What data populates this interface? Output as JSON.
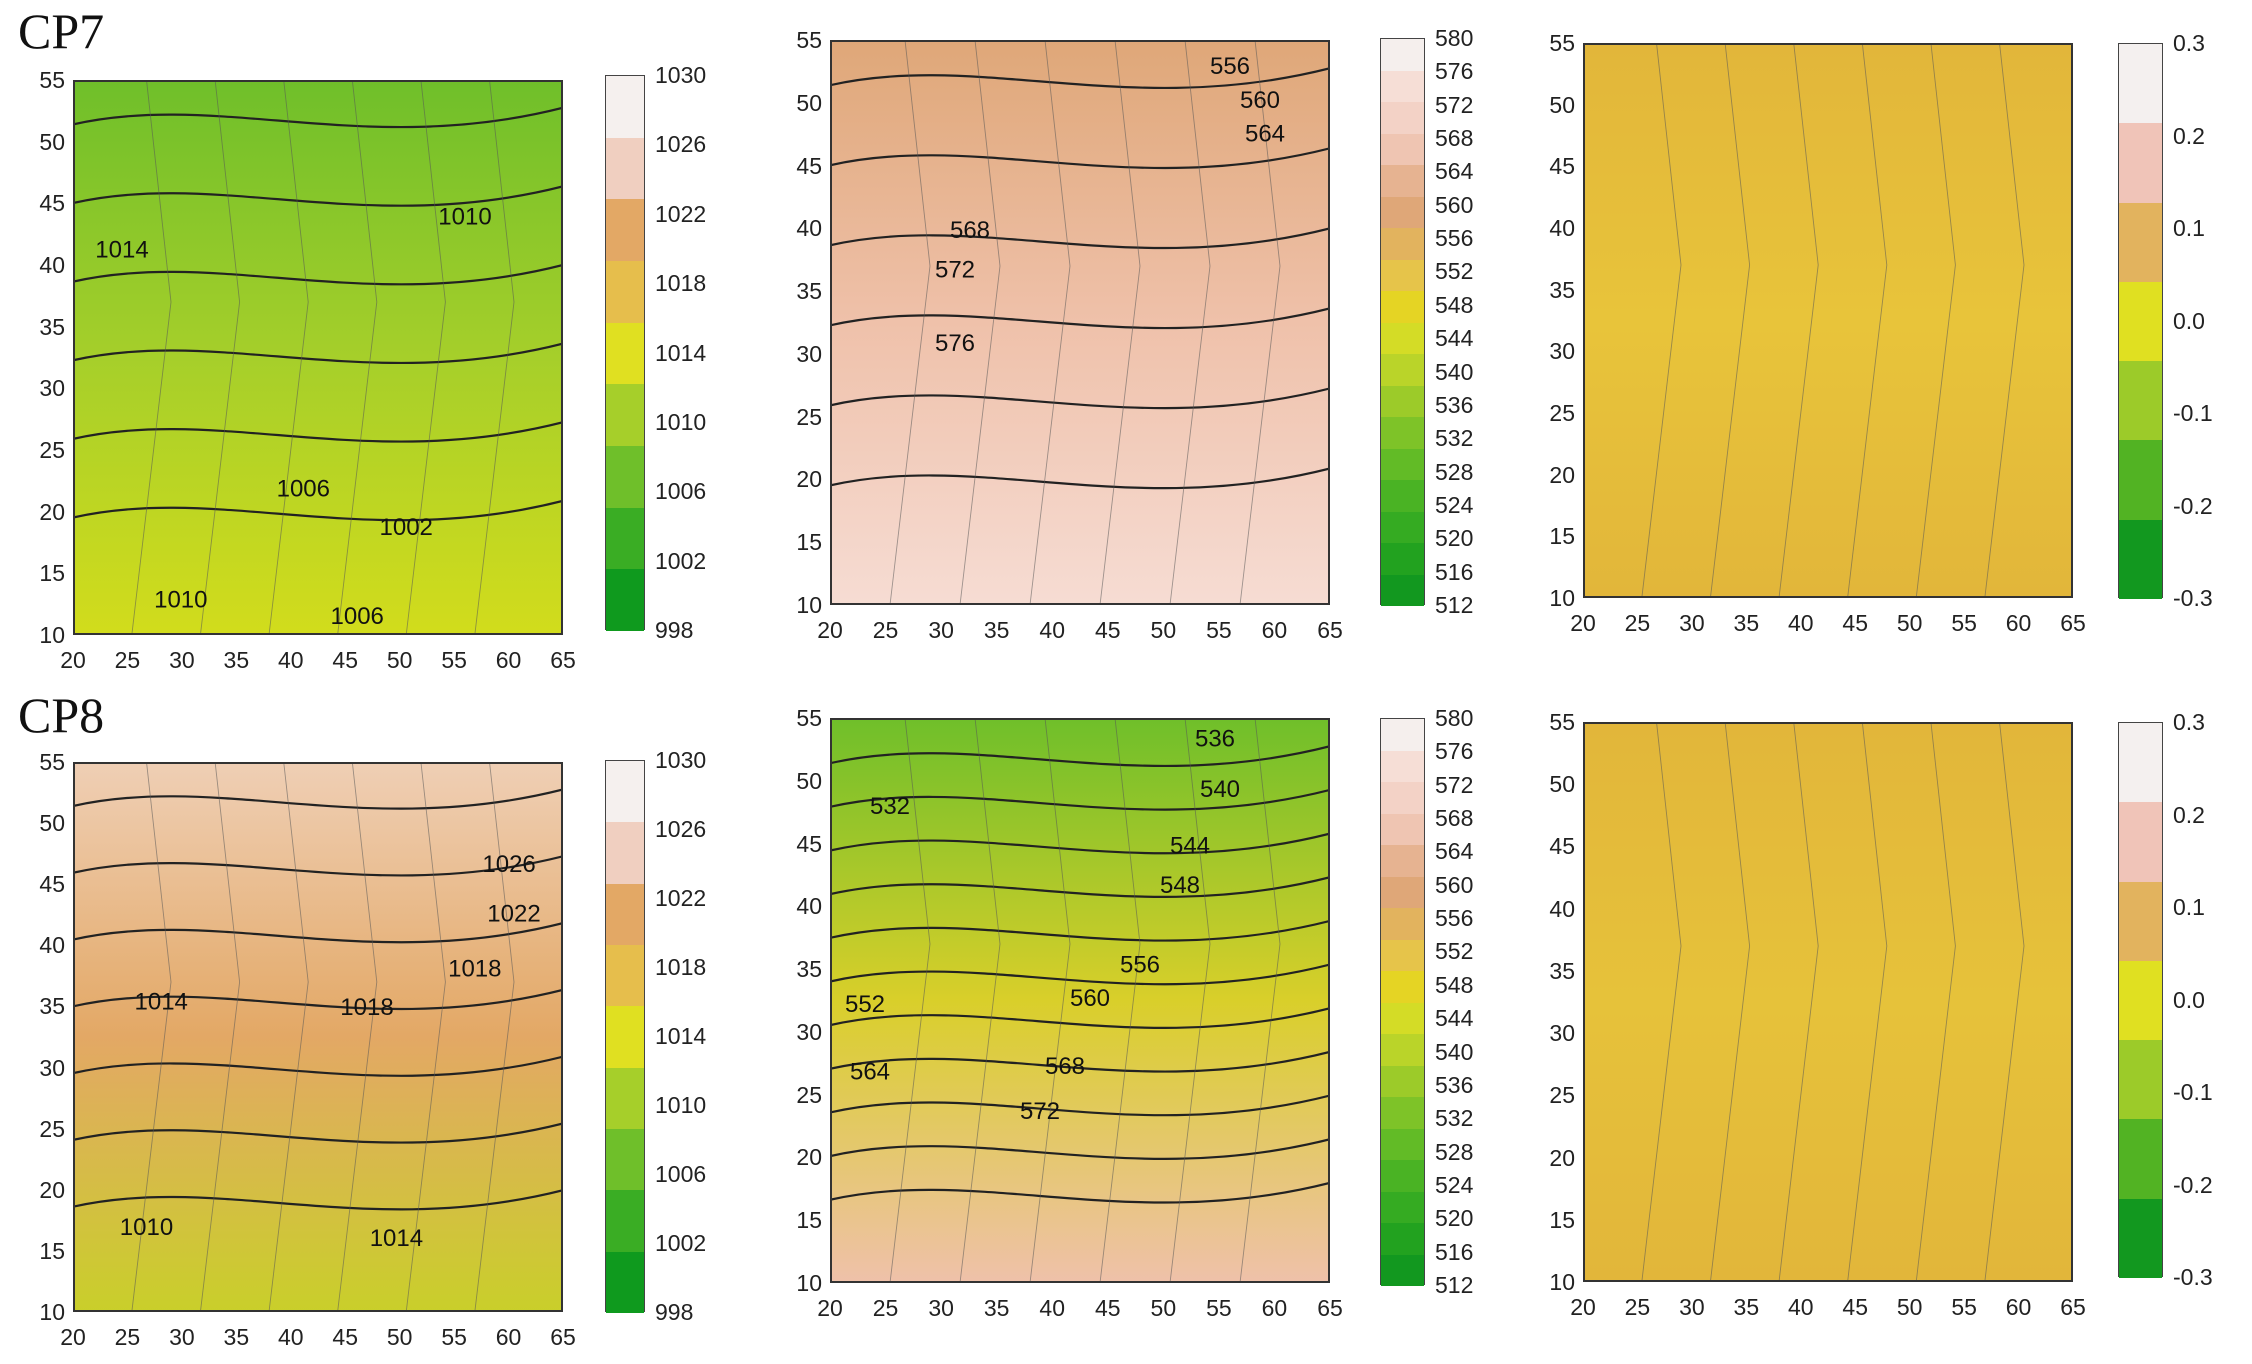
{
  "rows": [
    {
      "label": "CP7"
    },
    {
      "label": "CP8"
    }
  ],
  "chart_data": [
    {
      "type": "heatmap",
      "id": "cp7-slp",
      "xlim": [
        20,
        65
      ],
      "ylim": [
        10,
        55
      ],
      "xticks": [
        "20",
        "25",
        "30",
        "35",
        "40",
        "45",
        "50",
        "55",
        "60",
        "65"
      ],
      "yticks": [
        "10",
        "15",
        "20",
        "25",
        "30",
        "35",
        "40",
        "45",
        "50",
        "55"
      ],
      "colorbar": [
        "998",
        "1002",
        "1006",
        "1010",
        "1014",
        "1018",
        "1022",
        "1026",
        "1030"
      ],
      "contour_labels": [
        "1010",
        "1014",
        "1006",
        "1002",
        "1010",
        "1006"
      ],
      "gradient": [
        "#6fbf2a",
        "#a6cf2a",
        "#d2dc1c"
      ]
    },
    {
      "type": "heatmap",
      "id": "cp7-z500",
      "xlim": [
        20,
        65
      ],
      "ylim": [
        10,
        55
      ],
      "xticks": [
        "20",
        "25",
        "30",
        "35",
        "40",
        "45",
        "50",
        "55",
        "60",
        "65"
      ],
      "yticks": [
        "10",
        "15",
        "20",
        "25",
        "30",
        "35",
        "40",
        "45",
        "50",
        "55"
      ],
      "colorbar": [
        "512",
        "516",
        "520",
        "524",
        "528",
        "532",
        "536",
        "540",
        "544",
        "548",
        "552",
        "556",
        "560",
        "564",
        "568",
        "572",
        "576",
        "580"
      ],
      "contour_labels": [
        "556",
        "560",
        "564",
        "568",
        "572",
        "576"
      ],
      "gradient": [
        "#dfa778",
        "#efc1aa",
        "#f6dcd3"
      ]
    },
    {
      "type": "heatmap",
      "id": "cp7-anom",
      "xlim": [
        20,
        65
      ],
      "ylim": [
        10,
        55
      ],
      "xticks": [
        "20",
        "25",
        "30",
        "35",
        "40",
        "45",
        "50",
        "55",
        "60",
        "65"
      ],
      "yticks": [
        "10",
        "15",
        "20",
        "25",
        "30",
        "35",
        "40",
        "45",
        "50",
        "55"
      ],
      "colorbar": [
        "-0.3",
        "-0.2",
        "-0.1",
        "0.0",
        "0.1",
        "0.2",
        "0.3"
      ],
      "contour_labels": [],
      "gradient": [
        "#e2b63a",
        "#e8c43a",
        "#e2b63a"
      ]
    },
    {
      "type": "heatmap",
      "id": "cp8-slp",
      "xlim": [
        20,
        65
      ],
      "ylim": [
        10,
        55
      ],
      "xticks": [
        "20",
        "25",
        "30",
        "35",
        "40",
        "45",
        "50",
        "55",
        "60",
        "65"
      ],
      "yticks": [
        "10",
        "15",
        "20",
        "25",
        "30",
        "35",
        "40",
        "45",
        "50",
        "55"
      ],
      "colorbar": [
        "998",
        "1002",
        "1006",
        "1010",
        "1014",
        "1018",
        "1022",
        "1026",
        "1030"
      ],
      "contour_labels": [
        "1026",
        "1022",
        "1018",
        "1018",
        "1014",
        "1010",
        "1014"
      ],
      "gradient": [
        "#efcfb5",
        "#e3a865",
        "#c9cf2a"
      ]
    },
    {
      "type": "heatmap",
      "id": "cp8-z500",
      "xlim": [
        20,
        65
      ],
      "ylim": [
        10,
        55
      ],
      "xticks": [
        "20",
        "25",
        "30",
        "35",
        "40",
        "45",
        "50",
        "55",
        "60",
        "65"
      ],
      "yticks": [
        "10",
        "15",
        "20",
        "25",
        "30",
        "35",
        "40",
        "45",
        "50",
        "55"
      ],
      "colorbar": [
        "512",
        "516",
        "520",
        "524",
        "528",
        "532",
        "536",
        "540",
        "544",
        "548",
        "552",
        "556",
        "560",
        "564",
        "568",
        "572",
        "576",
        "580"
      ],
      "contour_labels": [
        "536",
        "540",
        "544",
        "548",
        "532",
        "556",
        "560",
        "552",
        "568",
        "564",
        "572"
      ],
      "gradient": [
        "#6fbf2a",
        "#d9cf2a",
        "#efc1aa"
      ]
    },
    {
      "type": "heatmap",
      "id": "cp8-anom",
      "xlim": [
        20,
        65
      ],
      "ylim": [
        10,
        55
      ],
      "xticks": [
        "20",
        "25",
        "30",
        "35",
        "40",
        "45",
        "50",
        "55",
        "60",
        "65"
      ],
      "yticks": [
        "10",
        "15",
        "20",
        "25",
        "30",
        "35",
        "40",
        "45",
        "50",
        "55"
      ],
      "colorbar": [
        "-0.3",
        "-0.2",
        "-0.1",
        "0.0",
        "0.1",
        "0.2",
        "0.3"
      ],
      "contour_labels": [],
      "gradient": [
        "#e2b63a",
        "#e6c23a",
        "#e2b63a"
      ]
    }
  ],
  "colors": {
    "slp_scale": [
      "#0f9a1e",
      "#3aad24",
      "#6fbf2a",
      "#a6cf2a",
      "#e0e021",
      "#e6be4c",
      "#e3a865",
      "#f0cfc0",
      "#f5f0ee"
    ],
    "z_scale": [
      "#12981f",
      "#22a21f",
      "#35ab22",
      "#4ab324",
      "#62bb26",
      "#7ec328",
      "#9ccb29",
      "#bad429",
      "#d4dc26",
      "#e5d424",
      "#e6c44a",
      "#e2b35e",
      "#dfa778",
      "#e6b391",
      "#efc5b2",
      "#f3d2c6",
      "#f6ded6",
      "#f5efed"
    ],
    "anom_scale": [
      "#12981f",
      "#52b323",
      "#9ccb29",
      "#e0e021",
      "#e2b35e",
      "#f0c4b8",
      "#f4f0ef"
    ]
  }
}
